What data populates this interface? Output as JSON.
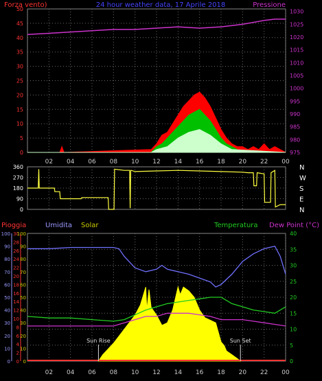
{
  "header": {
    "title": "24 hour weather data, 17 Aprile 2018"
  },
  "colors": {
    "background": "#000000",
    "plot_frame": "#888888",
    "grid": "#6a6a6a",
    "wind_max": "#ff0000",
    "wind_avg": "#00c000",
    "wind_min": "#ccffcc",
    "pressure": "#cc33cc",
    "direction": "#ffff40",
    "humidity": "#7070ff",
    "solar": "#ffff00",
    "temperature": "#22cc22",
    "dew_point": "#cc33cc",
    "rain": "#ff3333",
    "rain_axis": "#ff3333",
    "humidity_axis": "#9999ff",
    "solar_axis": "#cccc00",
    "temp_axis": "#22cc22",
    "sun_text": "#dddddd"
  },
  "chart_data": [
    {
      "type": "area",
      "panel": "wind-pressure",
      "left_axis_label": "Forza vento)",
      "right_axis_label": "Pressione",
      "left_ticks": [
        "0",
        "5",
        "10",
        "15",
        "20",
        "25",
        "30",
        "35",
        "40",
        "45",
        "50"
      ],
      "right_ticks": [
        "975",
        "980",
        "985",
        "990",
        "995",
        "1000",
        "1005",
        "1010",
        "1015",
        "1020",
        "1025",
        "1030"
      ],
      "ylim_left": [
        0,
        50
      ],
      "ylim_right": [
        975,
        1031
      ],
      "x_ticks": [
        "02",
        "04",
        "06",
        "08",
        "10",
        "12",
        "14",
        "16",
        "18",
        "20",
        "22",
        "00"
      ],
      "xlim_hours": [
        0,
        24
      ],
      "series": [
        {
          "x": [
            0,
            3,
            3.2,
            3.4,
            11.5,
            12,
            12.5,
            13,
            13.5,
            14,
            14.5,
            15,
            15.5,
            16,
            16.5,
            17,
            17.5,
            18,
            18.5,
            19,
            19.5,
            20,
            20.5,
            21,
            21.5,
            22,
            22.5,
            23,
            23.5,
            24
          ],
          "values": [
            0,
            0,
            2,
            0,
            1,
            3,
            6,
            7,
            10,
            13,
            16,
            18,
            20,
            21,
            19,
            16,
            12,
            8,
            5,
            3,
            2,
            2,
            1,
            2,
            1,
            3,
            1,
            2,
            1,
            0
          ]
        },
        {
          "x": [
            0,
            11.5,
            12,
            12.5,
            13,
            13.5,
            14,
            14.5,
            15,
            15.5,
            16,
            16.5,
            17,
            17.5,
            18,
            18.5,
            19,
            19.5,
            20,
            24
          ],
          "values": [
            0,
            0,
            2,
            3,
            5,
            7,
            9,
            11,
            13,
            14,
            15,
            13,
            11,
            8,
            5,
            3,
            2,
            1,
            0,
            0
          ]
        },
        {
          "x": [
            0,
            11.5,
            12,
            13,
            14,
            15,
            16,
            17,
            18,
            19,
            24
          ],
          "values": [
            0,
            0,
            1,
            2,
            5,
            7,
            8,
            6,
            3,
            1,
            0
          ]
        },
        {
          "x": [
            0,
            2,
            4,
            6,
            8,
            10,
            12,
            14,
            16,
            18,
            20,
            22,
            23,
            24
          ],
          "values": [
            1021,
            1021.5,
            1022,
            1022.5,
            1023,
            1023,
            1023.5,
            1024,
            1023.5,
            1024,
            1025,
            1026.5,
            1027,
            1027
          ]
        }
      ]
    },
    {
      "type": "line",
      "panel": "wind-direction",
      "left_ticks": [
        "0",
        "90",
        "180",
        "270",
        "360"
      ],
      "right_ticks": [
        "N",
        "W",
        "S",
        "E",
        "N"
      ],
      "ylim": [
        0,
        360
      ],
      "x_ticks": [
        "02",
        "04",
        "06",
        "08",
        "10",
        "12",
        "14",
        "16",
        "18",
        "20",
        "22",
        "00"
      ],
      "xlim_hours": [
        0,
        24
      ],
      "series": [
        {
          "x": [
            0,
            1,
            1.05,
            1.1,
            1.2,
            2.5,
            2.55,
            3,
            3.05,
            5,
            5.05,
            7.5,
            7.55,
            8.05,
            8.1,
            9,
            9.5,
            9.55,
            9.6,
            9.65,
            10,
            12,
            14,
            16,
            18,
            20,
            20.5,
            21,
            21.05,
            21.3,
            21.35,
            22,
            22.05,
            22.6,
            22.65,
            23,
            23.05,
            23.5,
            24
          ],
          "values": [
            180,
            180,
            340,
            180,
            180,
            180,
            150,
            150,
            90,
            90,
            100,
            100,
            0,
            0,
            340,
            330,
            330,
            10,
            330,
            330,
            320,
            325,
            330,
            325,
            320,
            315,
            310,
            310,
            200,
            200,
            310,
            300,
            60,
            60,
            310,
            330,
            20,
            40,
            40
          ]
        }
      ]
    },
    {
      "type": "line",
      "panel": "weather",
      "legend": {
        "rain": "Pioggia",
        "humidity": "Umidita",
        "solar": "Solar",
        "temperature": "Temperatura",
        "dew_point": "Dew Point (°C)"
      },
      "rain_ticks": [
        "0",
        "2",
        "4",
        "6",
        "8",
        "10",
        "12",
        "14",
        "16",
        "18",
        "20",
        "22",
        "24",
        "26",
        "28",
        "30"
      ],
      "humidity_ticks": [
        "0",
        "10",
        "20",
        "30",
        "40",
        "50",
        "60",
        "70",
        "80",
        "90",
        "100"
      ],
      "solar_ticks": [
        "0",
        "10",
        "20",
        "30",
        "40",
        "50",
        "60",
        "70",
        "80",
        "90",
        "100"
      ],
      "temp_ticks": [
        "0",
        "5",
        "10",
        "15",
        "20",
        "25",
        "30",
        "35",
        "40"
      ],
      "x_ticks": [
        "02",
        "04",
        "06",
        "08",
        "10",
        "12",
        "14",
        "16",
        "18",
        "20",
        "22",
        "00"
      ],
      "xlim_hours": [
        0,
        24
      ],
      "temp_ylim": [
        0,
        40
      ],
      "humidity_ylim": [
        0,
        100
      ],
      "sunrise_label": "Sun Rise",
      "sunset_label": "Sun Set",
      "sunrise_hour": 6.6,
      "sunset_hour": 19.8,
      "series": [
        {
          "name": "Umidita",
          "x": [
            0,
            2,
            4,
            6,
            8,
            8.5,
            9,
            10,
            11,
            12,
            12.5,
            13,
            14,
            15,
            16,
            17,
            17.5,
            18,
            19,
            20,
            21,
            22,
            23,
            23.5,
            24
          ],
          "values": [
            88,
            88,
            89,
            89,
            89,
            88,
            82,
            73,
            70,
            72,
            75,
            72,
            70,
            68,
            65,
            62,
            58,
            60,
            68,
            78,
            84,
            88,
            90,
            82,
            68
          ]
        },
        {
          "name": "Solar",
          "x": [
            6.6,
            7,
            8,
            9,
            10,
            10.5,
            11,
            11.1,
            11.3,
            11.5,
            12,
            12.5,
            13,
            13.5,
            14,
            14.2,
            14.5,
            15,
            15.5,
            16,
            16.5,
            17,
            17.5,
            18,
            18.3,
            18.5,
            19,
            19.5,
            19.8
          ],
          "values": [
            0,
            5,
            14,
            25,
            36,
            44,
            58,
            40,
            56,
            42,
            36,
            28,
            30,
            40,
            58,
            52,
            58,
            55,
            50,
            40,
            34,
            32,
            30,
            15,
            12,
            8,
            5,
            2,
            0
          ]
        },
        {
          "name": "Temperatura",
          "x": [
            0,
            2,
            4,
            6,
            8,
            9,
            10,
            11,
            12,
            13,
            14,
            15,
            16,
            17,
            18,
            18.5,
            19,
            20,
            21,
            22,
            23,
            23.5,
            24
          ],
          "values": [
            14,
            13.5,
            13.5,
            13,
            12.5,
            13,
            14.5,
            16,
            17,
            18,
            18.5,
            19,
            19.5,
            20,
            20,
            19,
            18,
            17,
            16,
            15.5,
            15,
            16,
            17
          ]
        },
        {
          "name": "Dew Point (°C)",
          "x": [
            0,
            2,
            4,
            6,
            8,
            9,
            10,
            11,
            12,
            13,
            14,
            15,
            16,
            17,
            18,
            19,
            20,
            21,
            22,
            23,
            24
          ],
          "values": [
            11,
            11,
            11,
            11,
            11,
            12,
            13,
            14,
            14,
            15,
            15,
            15,
            14.5,
            14,
            13,
            13,
            13,
            12.5,
            12,
            11.5,
            11
          ]
        },
        {
          "name": "Pioggia",
          "x": [
            0,
            24
          ],
          "values": [
            0,
            0
          ]
        }
      ]
    }
  ]
}
